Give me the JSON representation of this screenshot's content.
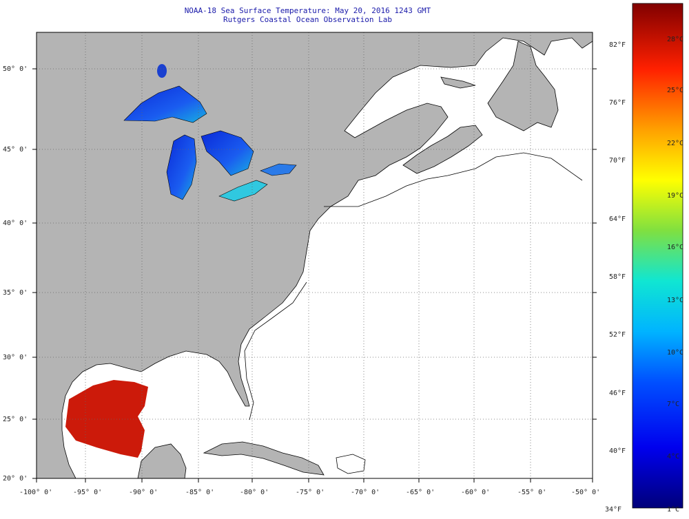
{
  "title_line1": "NOAA-18 Sea Surface Temperature:  May 20, 2016 1243 GMT",
  "title_line2": "Rutgers Coastal Ocean Observation Lab",
  "lat_labels": [
    "50° 0'",
    "45° 0'",
    "40° 0'",
    "35° 0'",
    "30° 0'",
    "25° 0'",
    "20° 0'"
  ],
  "lon_labels": [
    "-100° 0'",
    "-95° 0'",
    "-90° 0'",
    "-85° 0'",
    "-80° 0'",
    "-75° 0'",
    "-70° 0'",
    "-65° 0'",
    "-60° 0'",
    "-55° 0'",
    "-50° 0'"
  ],
  "colorbar": {
    "fahrenheit": [
      "82°F",
      "76°F",
      "70°F",
      "64°F",
      "58°F",
      "52°F",
      "46°F",
      "40°F",
      "34°F"
    ],
    "celsius": [
      "28°C",
      "25°C",
      "22°C",
      "19°C",
      "16°C",
      "13°C",
      "10°C",
      "7°C",
      "4°C",
      "1°C"
    ]
  },
  "colors": {
    "land": "#b4b4b4",
    "title": "#1a1aaa",
    "grid": "#666666"
  }
}
